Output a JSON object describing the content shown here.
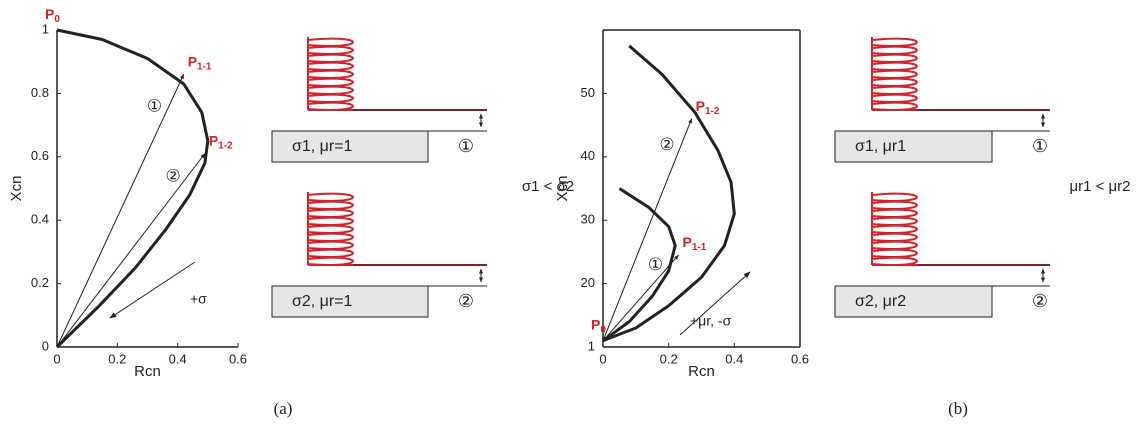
{
  "chart_data": [
    {
      "type": "line",
      "xlabel": "Rcn",
      "ylabel": "Xcn",
      "caption": "(a)",
      "xlim": [
        0,
        0.6
      ],
      "ylim": [
        0,
        1
      ],
      "xticks": [
        0,
        0.2,
        0.4,
        0.6
      ],
      "yticks": [
        0,
        0.2,
        0.4,
        0.6,
        0.8,
        1
      ],
      "frame": false,
      "series": [
        {
          "color": "#222222",
          "x": [
            0,
            0.15,
            0.3,
            0.42,
            0.48,
            0.5,
            0.49,
            0.44,
            0.36,
            0.26,
            0.14,
            0
          ],
          "values": [
            1,
            0.97,
            0.91,
            0.83,
            0.74,
            0.65,
            0.58,
            0.48,
            0.37,
            0.25,
            0.13,
            0
          ]
        }
      ],
      "start_label": {
        "text": "P",
        "sub": "0",
        "x": 0,
        "y": 1
      },
      "vectors": [
        {
          "x": 0.42,
          "y": 0.86,
          "num": "①",
          "point": "P",
          "sub": "1-1"
        },
        {
          "x": 0.49,
          "y": 0.61,
          "num": "②",
          "point": "P",
          "sub": "1-2"
        }
      ],
      "direction_label": "+σ"
    },
    {
      "type": "line",
      "xlabel": "Rcn",
      "ylabel": "Xcn",
      "caption": "(b)",
      "xlim": [
        0,
        0.6
      ],
      "ylim": [
        10,
        60
      ],
      "xticks": [
        0,
        0.2,
        0.4,
        0.6
      ],
      "yticks": [
        {
          "value": 10,
          "label": "1"
        },
        20,
        30,
        40,
        50
      ],
      "frame": true,
      "series": [
        {
          "color": "#222222",
          "x": [
            0,
            0.1,
            0.2,
            0.3,
            0.37,
            0.4,
            0.39,
            0.35,
            0.28,
            0.18,
            0.08
          ],
          "values": [
            11,
            13,
            16.5,
            21,
            26,
            31,
            36,
            41,
            47,
            53,
            57.5
          ]
        },
        {
          "color": "#222222",
          "x": [
            0,
            0.08,
            0.15,
            0.2,
            0.22,
            0.2,
            0.14,
            0.05
          ],
          "values": [
            11,
            14,
            18,
            22,
            26,
            29,
            32,
            35
          ]
        }
      ],
      "start_label": {
        "text": "P",
        "sub": "0",
        "x": 0,
        "y": 11
      },
      "vectors": [
        {
          "x": 0.23,
          "y": 24.5,
          "num": "①",
          "point": "P",
          "sub": "1-1"
        },
        {
          "x": 0.27,
          "y": 46,
          "num": "②",
          "point": "P",
          "sub": "1-2"
        }
      ],
      "direction_label": "+μr, -σ"
    }
  ],
  "diagrams": [
    {
      "cases": [
        {
          "label": "σ1, μr=1",
          "num": "①"
        },
        {
          "label": "σ2, μr=1",
          "num": "②"
        }
      ],
      "relation": "σ1 < σ2"
    },
    {
      "cases": [
        {
          "label": "σ1, μr1",
          "num": "①"
        },
        {
          "label": "σ2, μr2",
          "num": "②"
        }
      ],
      "relation": "μr1 < μr2"
    }
  ]
}
